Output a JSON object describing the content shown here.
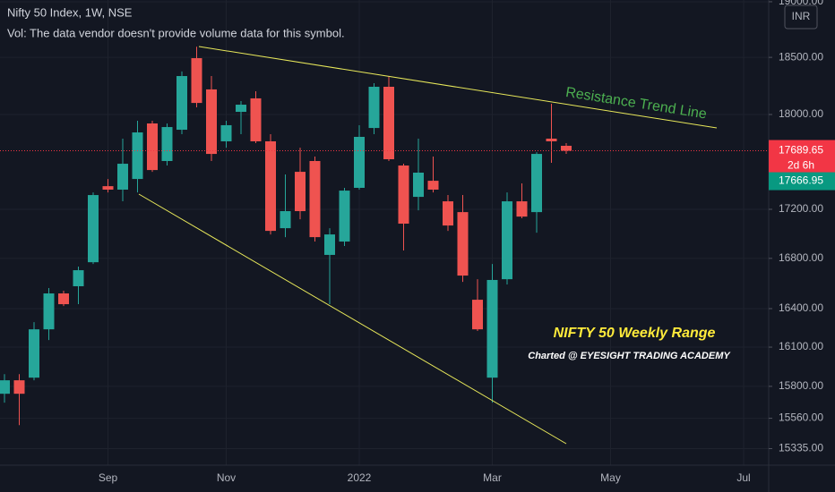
{
  "chart_data": {
    "type": "candlestick",
    "title": "Nifty 50 Index, 1W, NSE",
    "subtitle": "Vol: The data vendor doesn't provide volume data for this symbol.",
    "currency": "INR",
    "annotations": [
      "Resistance Trend Line",
      "NIFTY 50 Weekly Range",
      "Charted @ EYESIGHT TRADING ACADEMY"
    ],
    "categories": [
      null,
      null,
      null,
      null,
      null,
      null,
      null,
      "Sep",
      null,
      null,
      null,
      null,
      null,
      null,
      null,
      "Nov",
      null,
      null,
      null,
      null,
      null,
      null,
      null,
      null,
      "2022",
      null,
      null,
      null,
      null,
      null,
      null,
      null,
      null,
      "Mar",
      null,
      null,
      null,
      null,
      null,
      null,
      null,
      "May",
      null,
      null,
      null,
      null,
      null,
      null,
      null,
      null,
      "Jul",
      null
    ],
    "open": [
      15744,
      15846,
      15866,
      16238,
      16520,
      16577,
      16769,
      17392,
      17363,
      17452,
      17923,
      17603,
      17869,
      18493,
      18218,
      17770,
      18023,
      18140,
      17770,
      17045,
      17512,
      17603,
      16828,
      16936,
      17378,
      17884,
      18241,
      17565,
      17303,
      17437,
      17266,
      17177,
      16470,
      15866,
      16633,
      17266,
      17177,
      17793,
      17732,
      null,
      null,
      null,
      null,
      null,
      null,
      null,
      null,
      null,
      null,
      null,
      null,
      null
    ],
    "high": [
      15893,
      15893,
      16294,
      16563,
      16541,
      16734,
      17340,
      17452,
      17793,
      17946,
      17946,
      17923,
      18375,
      18595,
      18335,
      17946,
      18116,
      18202,
      17831,
      17490,
      17716,
      17641,
      17045,
      17378,
      17908,
      18272,
      18335,
      17580,
      17793,
      17641,
      17318,
      17318,
      16633,
      16755,
      17340,
      17415,
      17678,
      18093,
      17755,
      null,
      null,
      null,
      null,
      null,
      null,
      null,
      null,
      null,
      null,
      null,
      null,
      null
    ],
    "low": [
      15677,
      15509,
      15846,
      16155,
      16420,
      16435,
      16755,
      17340,
      17266,
      17340,
      17512,
      17565,
      17831,
      18062,
      17603,
      17716,
      17831,
      17755,
      16994,
      16972,
      17118,
      16936,
      16435,
      16900,
      17363,
      17831,
      17603,
      16864,
      17192,
      17340,
      17023,
      16612,
      16225,
      15677,
      16591,
      17126,
      17008,
      17588,
      17663,
      null,
      null,
      null,
      null,
      null,
      null,
      null,
      null,
      null,
      null,
      null,
      null,
      null
    ],
    "close": [
      15846,
      15744,
      16238,
      16520,
      16435,
      16705,
      17318,
      17363,
      17580,
      17846,
      17527,
      17892,
      18335,
      18100,
      17663,
      17908,
      18085,
      17770,
      17023,
      17185,
      17185,
      16972,
      16994,
      17355,
      17808,
      18241,
      17618,
      17082,
      17505,
      17363,
      17067,
      16662,
      16238,
      16627,
      17266,
      17140,
      17663,
      17770,
      17689.65,
      null,
      null,
      null,
      null,
      null,
      null,
      null,
      null,
      null,
      null,
      null,
      null,
      null
    ],
    "up_color": "#26a69a",
    "down_color": "#ef5350",
    "ylog": true,
    "ylim": [
      15214,
      19016
    ],
    "yticks": [
      {
        "value": 19000,
        "label": "19000.00"
      },
      {
        "value": 18500,
        "label": "18500.00"
      },
      {
        "value": 18000,
        "label": "18000.00"
      },
      {
        "value": 17200,
        "label": "17200.00"
      },
      {
        "value": 16800,
        "label": "16800.00"
      },
      {
        "value": 16400,
        "label": "16400.00"
      },
      {
        "value": 16100,
        "label": "16100.00"
      },
      {
        "value": 15800,
        "label": "15800.00"
      },
      {
        "value": 15560,
        "label": "15560.00"
      },
      {
        "value": 15335,
        "label": "15335.00"
      }
    ],
    "grid": true,
    "price_tags": [
      {
        "value": 17689.65,
        "sub": "2d 6h",
        "color": "#f23645"
      },
      {
        "value": 17666.95,
        "color": "#089981"
      }
    ]
  }
}
